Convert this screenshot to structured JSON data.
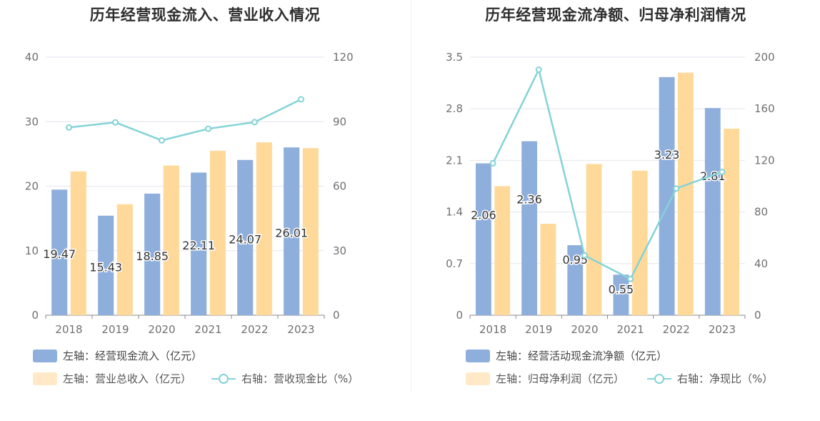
{
  "chart_data": [
    {
      "type": "bar",
      "title": "历年经营现金流入、营业收入情况",
      "categories": [
        "2018",
        "2019",
        "2020",
        "2021",
        "2022",
        "2023"
      ],
      "left_axis": {
        "ylim": [
          0,
          40
        ],
        "ticks": [
          "0",
          "10",
          "20",
          "30",
          "40"
        ]
      },
      "right_axis": {
        "ylim": [
          0,
          120
        ],
        "ticks": [
          "0",
          "30",
          "60",
          "90",
          "120"
        ]
      },
      "series": [
        {
          "name": "左轴：经营现金流入（亿元）",
          "type": "bar",
          "axis": "left",
          "color": "#8eaedc",
          "values": [
            19.47,
            15.43,
            18.85,
            22.11,
            24.07,
            26.01
          ],
          "labels": [
            "19.47",
            "15.43",
            "18.85",
            "22.11",
            "24.07",
            "26.01"
          ]
        },
        {
          "name": "左轴：营业总收入（亿元）",
          "type": "bar",
          "axis": "left",
          "color": "#ffd99a",
          "values": [
            22.3,
            17.2,
            23.2,
            25.5,
            26.8,
            25.9
          ]
        },
        {
          "name": "右轴：营收现金比（%）",
          "type": "line",
          "axis": "right",
          "color": "#84d3d6",
          "values": [
            87.3,
            89.7,
            81.3,
            86.7,
            89.8,
            100.4
          ]
        }
      ],
      "grid": true,
      "legend_position": "bottom-left"
    },
    {
      "type": "bar",
      "title": "历年经营现金流净额、归母净利润情况",
      "categories": [
        "2018",
        "2019",
        "2020",
        "2021",
        "2022",
        "2023"
      ],
      "left_axis": {
        "ylim": [
          0,
          3.5
        ],
        "ticks": [
          "0",
          "0.7",
          "1.4",
          "2.1",
          "2.8",
          "3.5"
        ]
      },
      "right_axis": {
        "ylim": [
          0,
          200
        ],
        "ticks": [
          "0",
          "40",
          "80",
          "120",
          "160",
          "200"
        ]
      },
      "series": [
        {
          "name": "左轴：经营活动现金流净额（亿元）",
          "type": "bar",
          "axis": "left",
          "color": "#8eaedc",
          "values": [
            2.06,
            2.36,
            0.95,
            0.55,
            3.23,
            2.81
          ],
          "labels": [
            "2.06",
            "2.36",
            "0.95",
            "0.55",
            "3.23",
            "2.81"
          ]
        },
        {
          "name": "左轴：归母净利润（亿元）",
          "type": "bar",
          "axis": "left",
          "color": "#ffd99a",
          "values": [
            1.75,
            1.24,
            2.05,
            1.96,
            3.29,
            2.53
          ]
        },
        {
          "name": "右轴：净现比（%）",
          "type": "line",
          "axis": "right",
          "color": "#84d3d6",
          "values": [
            117.7,
            190.3,
            46.3,
            28.1,
            98.2,
            111.1
          ]
        }
      ],
      "grid": true,
      "legend_position": "bottom-left"
    }
  ]
}
